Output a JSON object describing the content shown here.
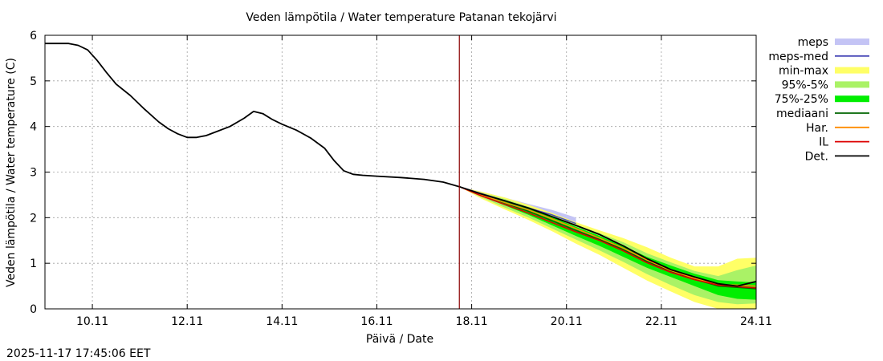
{
  "chart_data": {
    "type": "area",
    "title": "Veden lämpötila / Water temperature Patanan tekojärvi",
    "xlabel": "Päivä / Date",
    "ylabel": "Veden lämpötila / Water temperature (C)",
    "x_unit": "day of November 2025",
    "xlim": [
      9.0,
      24.0
    ],
    "ylim": [
      0,
      6
    ],
    "x_ticks": [
      {
        "x": 10,
        "label": "10.11"
      },
      {
        "x": 12,
        "label": "12.11"
      },
      {
        "x": 14,
        "label": "14.11"
      },
      {
        "x": 16,
        "label": "16.11"
      },
      {
        "x": 18,
        "label": "18.11"
      },
      {
        "x": 20,
        "label": "20.11"
      },
      {
        "x": 22,
        "label": "22.11"
      },
      {
        "x": 24,
        "label": "24.11"
      }
    ],
    "y_ticks": [
      0,
      1,
      2,
      3,
      4,
      5,
      6
    ],
    "grid": true,
    "forecast_start": 17.74,
    "timestamp": "2025-11-17 17:45:06 EET",
    "legend_position": "right",
    "colors": {
      "meps": "#c4c4f5",
      "meps_med": "#4a4ab8",
      "min_max": "#ffff66",
      "p95_5": "#aaf266",
      "p75_25": "#00ee00",
      "median": "#006400",
      "har": "#ff8c00",
      "il": "#dd0000",
      "det": "#000000",
      "forecast_line": "#8b0000"
    },
    "legend": [
      {
        "key": "meps",
        "label": "meps",
        "kind": "band"
      },
      {
        "key": "meps_med",
        "label": "meps-med",
        "kind": "line"
      },
      {
        "key": "min_max",
        "label": "min-max",
        "kind": "band"
      },
      {
        "key": "p95_5",
        "label": "95%-5%",
        "kind": "band"
      },
      {
        "key": "p75_25",
        "label": "75%-25%",
        "kind": "band"
      },
      {
        "key": "median",
        "label": "mediaani",
        "kind": "line"
      },
      {
        "key": "har",
        "label": "Har.",
        "kind": "line"
      },
      {
        "key": "il",
        "label": "IL",
        "kind": "line"
      },
      {
        "key": "det",
        "label": "Det.",
        "kind": "line"
      }
    ],
    "observed": {
      "x": [
        9.0,
        9.5,
        9.7,
        9.9,
        10.1,
        10.3,
        10.5,
        10.8,
        11.1,
        11.4,
        11.6,
        11.8,
        12.0,
        12.2,
        12.4,
        12.6,
        12.9,
        13.2,
        13.4,
        13.6,
        13.8,
        14.0,
        14.3,
        14.6,
        14.9,
        15.1,
        15.3,
        15.5,
        15.7,
        16.0,
        16.5,
        17.0,
        17.4,
        17.74
      ],
      "y": [
        5.82,
        5.82,
        5.78,
        5.68,
        5.45,
        5.18,
        4.93,
        4.68,
        4.38,
        4.1,
        3.95,
        3.84,
        3.76,
        3.76,
        3.8,
        3.88,
        4.0,
        4.18,
        4.33,
        4.28,
        4.15,
        4.05,
        3.92,
        3.75,
        3.52,
        3.25,
        3.03,
        2.95,
        2.93,
        2.91,
        2.88,
        2.84,
        2.78,
        2.68
      ]
    },
    "forecast_x": [
      17.74,
      18.2,
      18.7,
      19.2,
      19.7,
      20.2,
      20.7,
      21.2,
      21.7,
      22.2,
      22.7,
      23.2,
      23.6,
      24.0
    ],
    "series": [
      {
        "key": "meps_lo",
        "name": "meps lower",
        "values": [
          2.68,
          2.5,
          2.3,
          2.12,
          1.95,
          1.75,
          null,
          null,
          null,
          null,
          null,
          null,
          null,
          null
        ]
      },
      {
        "key": "meps_hi",
        "name": "meps upper",
        "values": [
          2.68,
          2.57,
          2.44,
          2.3,
          2.17,
          2.0,
          null,
          null,
          null,
          null,
          null,
          null,
          null,
          null
        ]
      },
      {
        "key": "min",
        "name": "min",
        "values": [
          2.68,
          2.42,
          2.18,
          1.95,
          1.7,
          1.43,
          1.18,
          0.9,
          0.62,
          0.38,
          0.15,
          0.0,
          0.0,
          0.0
        ]
      },
      {
        "key": "max",
        "name": "max",
        "values": [
          2.68,
          2.57,
          2.44,
          2.28,
          2.1,
          1.9,
          1.72,
          1.55,
          1.35,
          1.12,
          0.93,
          0.93,
          1.1,
          1.12
        ]
      },
      {
        "key": "p5",
        "name": "5%",
        "values": [
          2.68,
          2.45,
          2.22,
          2.0,
          1.76,
          1.52,
          1.28,
          1.03,
          0.76,
          0.52,
          0.3,
          0.15,
          0.1,
          0.12
        ]
      },
      {
        "key": "p95",
        "name": "95%",
        "values": [
          2.68,
          2.55,
          2.41,
          2.24,
          2.05,
          1.85,
          1.66,
          1.46,
          1.22,
          1.02,
          0.83,
          0.72,
          0.85,
          0.95
        ]
      },
      {
        "key": "p25",
        "name": "25%",
        "values": [
          2.68,
          2.48,
          2.27,
          2.06,
          1.83,
          1.6,
          1.38,
          1.14,
          0.9,
          0.7,
          0.5,
          0.3,
          0.22,
          0.2
        ]
      },
      {
        "key": "p75",
        "name": "75%",
        "values": [
          2.68,
          2.53,
          2.37,
          2.2,
          2.01,
          1.8,
          1.6,
          1.38,
          1.14,
          0.95,
          0.77,
          0.63,
          0.6,
          0.58
        ]
      },
      {
        "key": "meps_med",
        "name": "meps-med",
        "values": [
          2.68,
          2.53,
          2.37,
          2.21,
          2.06,
          1.87,
          null,
          null,
          null,
          null,
          null,
          null,
          null,
          null
        ]
      },
      {
        "key": "median",
        "name": "mediaani",
        "values": [
          2.68,
          2.5,
          2.32,
          2.14,
          1.93,
          1.72,
          1.52,
          1.3,
          1.04,
          0.82,
          0.65,
          0.5,
          0.47,
          0.44
        ]
      },
      {
        "key": "har",
        "name": "Har.",
        "values": [
          2.68,
          2.5,
          2.33,
          2.17,
          1.97,
          1.76,
          1.55,
          1.33,
          1.07,
          0.84,
          0.67,
          0.53,
          0.52,
          0.5
        ]
      },
      {
        "key": "il",
        "name": "IL",
        "values": [
          2.68,
          2.48,
          2.29,
          2.1,
          1.89,
          1.69,
          1.5,
          1.27,
          1.01,
          0.8,
          0.64,
          0.52,
          0.49,
          0.46
        ]
      },
      {
        "key": "det",
        "name": "Det.",
        "values": [
          2.68,
          2.52,
          2.37,
          2.21,
          2.02,
          1.83,
          1.63,
          1.38,
          1.1,
          0.86,
          0.7,
          0.55,
          0.5,
          0.6
        ]
      }
    ]
  }
}
